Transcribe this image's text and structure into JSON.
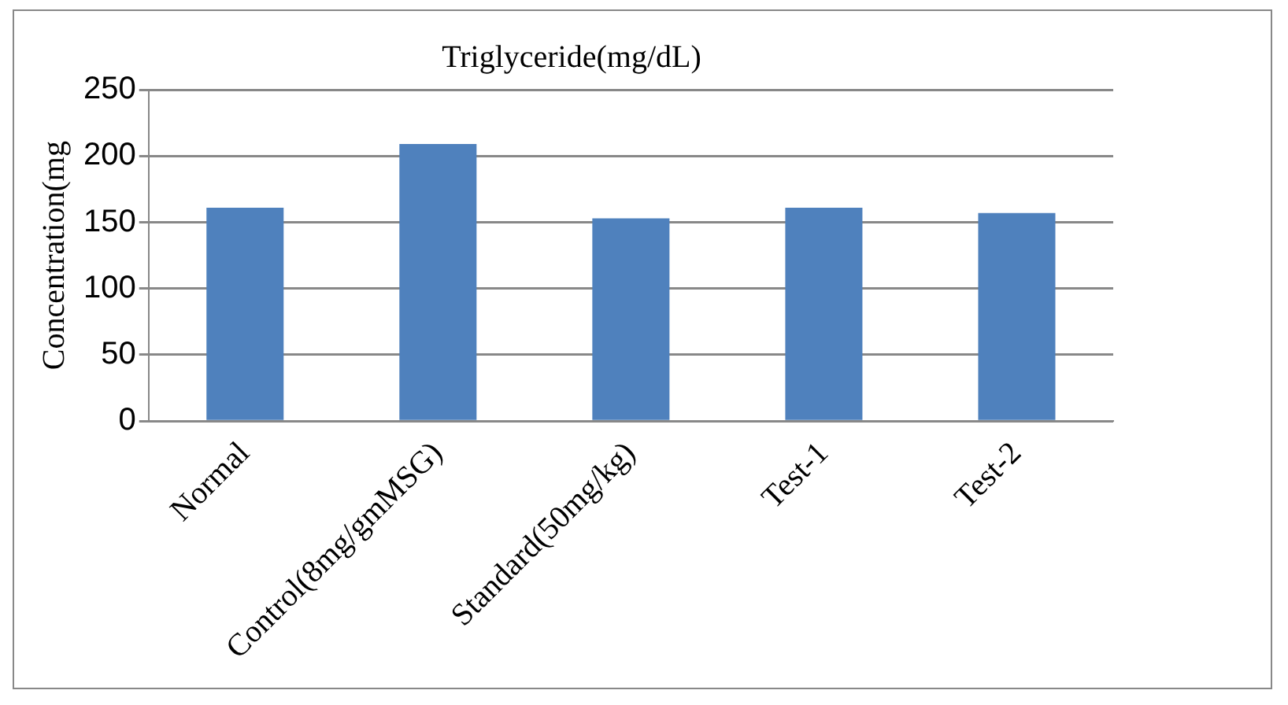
{
  "chart_data": {
    "type": "bar",
    "title": "Triglyceride(mg/dL)",
    "ylabel": "Concentration(mg",
    "categories": [
      "Normal",
      "Control(8mg/gmMSG)",
      "Standard(50mg/kg)",
      "Test-1",
      "Test-2"
    ],
    "values": [
      161,
      209,
      153,
      161,
      157
    ],
    "color": "#4f81bd",
    "ylim": [
      0,
      250
    ],
    "yticks": [
      0,
      50,
      100,
      150,
      200,
      250
    ],
    "grid": "y"
  }
}
